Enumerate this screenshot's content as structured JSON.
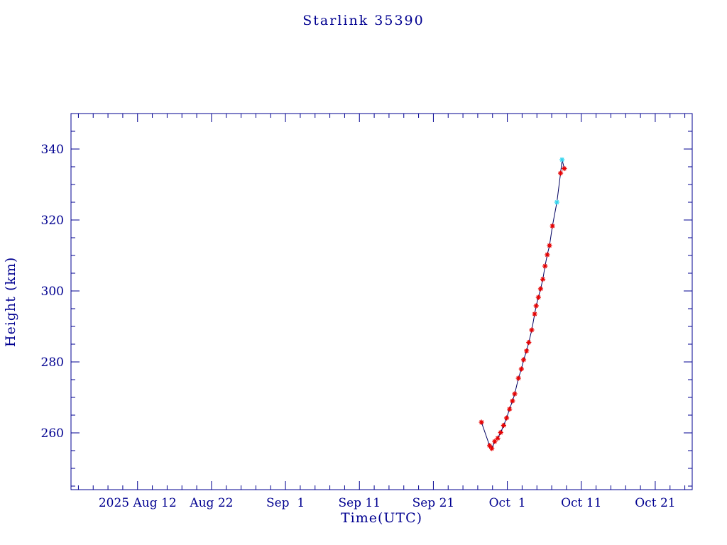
{
  "chart_data": {
    "type": "line",
    "title": "Starlink 35390",
    "xlabel": "Time(UTC)",
    "ylabel": "Height (km)",
    "x_unit": "days since 2025-08-01 UTC",
    "xlim": [
      2,
      86
    ],
    "ylim": [
      244,
      350
    ],
    "grid": false,
    "legend": "none",
    "x_major_ticks": [
      {
        "day": 11,
        "label": "2025 Aug 12"
      },
      {
        "day": 21,
        "label": "Aug 22"
      },
      {
        "day": 31,
        "label": "Sep  1"
      },
      {
        "day": 41,
        "label": "Sep 11"
      },
      {
        "day": 51,
        "label": "Sep 21"
      },
      {
        "day": 61,
        "label": "Oct  1"
      },
      {
        "day": 71,
        "label": "Oct 11"
      },
      {
        "day": 81,
        "label": "Oct 21"
      }
    ],
    "x_minor_step_days": 2,
    "y_major_ticks": [
      260,
      280,
      300,
      320,
      340
    ],
    "y_minor_step": 5,
    "series": [
      {
        "name": "orbit-height",
        "marker": "asterisk",
        "points": [
          [
            57.5,
            263.0,
            "red"
          ],
          [
            58.6,
            256.4,
            "red"
          ],
          [
            58.9,
            255.6,
            "red"
          ],
          [
            59.3,
            257.6,
            "red"
          ],
          [
            59.7,
            258.5,
            "red"
          ],
          [
            60.1,
            260.1,
            "red"
          ],
          [
            60.5,
            262.1,
            "red"
          ],
          [
            60.9,
            264.2,
            "red"
          ],
          [
            61.3,
            266.7,
            "red"
          ],
          [
            61.7,
            269.0,
            "red"
          ],
          [
            62.0,
            271.0,
            "red"
          ],
          [
            62.5,
            275.4,
            "red"
          ],
          [
            62.9,
            278.0,
            "red"
          ],
          [
            63.2,
            280.6,
            "red"
          ],
          [
            63.6,
            283.1,
            "red"
          ],
          [
            63.9,
            285.5,
            "red"
          ],
          [
            64.3,
            289.0,
            "red"
          ],
          [
            64.7,
            293.5,
            "red"
          ],
          [
            64.9,
            295.8,
            "red"
          ],
          [
            65.2,
            298.2,
            "red"
          ],
          [
            65.5,
            300.6,
            "red"
          ],
          [
            65.8,
            303.3,
            "red"
          ],
          [
            66.1,
            307.0,
            "red"
          ],
          [
            66.4,
            310.2,
            "red"
          ],
          [
            66.7,
            312.8,
            "red"
          ],
          [
            67.1,
            318.3,
            "red"
          ],
          [
            67.7,
            325.0,
            "cyan"
          ],
          [
            68.2,
            333.2,
            "red"
          ],
          [
            68.4,
            337.0,
            "cyan"
          ],
          [
            68.7,
            334.5,
            "red"
          ]
        ]
      }
    ],
    "colors": {
      "axis": "#000090",
      "line": "#000060",
      "red_marker": "#e60000",
      "cyan_marker": "#35d5ee",
      "background": "#ffffff"
    }
  }
}
